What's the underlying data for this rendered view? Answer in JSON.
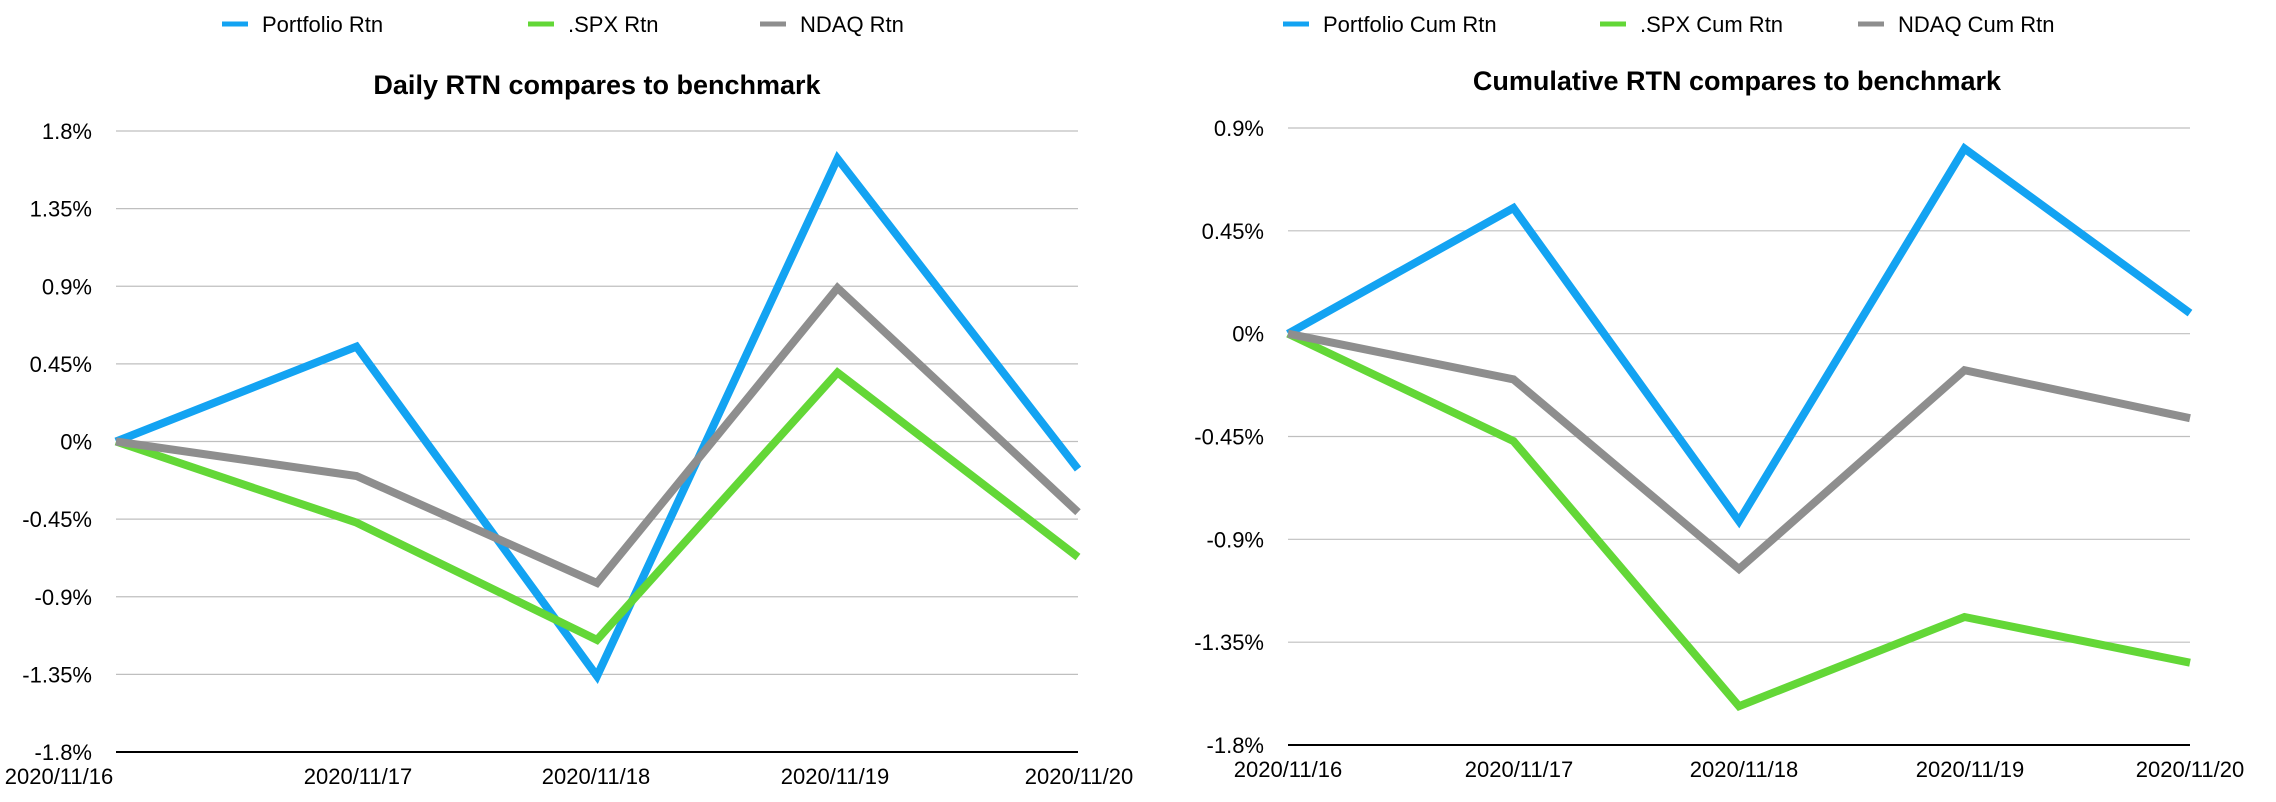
{
  "chart_data": [
    {
      "type": "line",
      "title": "Daily RTN compares to benchmark",
      "legend_position": "top",
      "grid": true,
      "categories": [
        "2020/11/16",
        "2020/11/17",
        "2020/11/18",
        "2020/11/19",
        "2020/11/20"
      ],
      "y_ticks": [
        "1.8%",
        "1.35%",
        "0.9%",
        "0.45%",
        "0%",
        "-0.45%",
        "-0.9%",
        "-1.35%",
        "-1.8%"
      ],
      "ylim": [
        -1.8,
        1.8
      ],
      "series": [
        {
          "name": "Portfolio Rtn",
          "color": "#13A3F2",
          "values": [
            0.0,
            0.55,
            -1.36,
            1.64,
            -0.16
          ]
        },
        {
          "name": ".SPX Rtn",
          "color": "#63D737",
          "values": [
            0.0,
            -0.47,
            -1.15,
            0.4,
            -0.67
          ]
        },
        {
          "name": "NDAQ Rtn",
          "color": "#8E8E8E",
          "values": [
            0.0,
            -0.2,
            -0.82,
            0.89,
            -0.41
          ]
        }
      ]
    },
    {
      "type": "line",
      "title": "Cumulative RTN compares to benchmark",
      "legend_position": "top",
      "grid": true,
      "categories": [
        "2020/11/16",
        "2020/11/17",
        "2020/11/18",
        "2020/11/19",
        "2020/11/20"
      ],
      "y_ticks": [
        "0.9%",
        "0.45%",
        "0%",
        "-0.45%",
        "-0.9%",
        "-1.35%",
        "-1.8%"
      ],
      "ylim": [
        -1.8,
        0.9
      ],
      "series": [
        {
          "name": "Portfolio Cum Rtn",
          "color": "#13A3F2",
          "values": [
            0.0,
            0.55,
            -0.82,
            0.81,
            0.09
          ]
        },
        {
          "name": ".SPX Cum Rtn",
          "color": "#63D737",
          "values": [
            0.0,
            -0.47,
            -1.63,
            -1.24,
            -1.44
          ]
        },
        {
          "name": "NDAQ Cum Rtn",
          "color": "#8E8E8E",
          "values": [
            0.0,
            -0.2,
            -1.03,
            -0.16,
            -0.37
          ]
        }
      ]
    }
  ]
}
